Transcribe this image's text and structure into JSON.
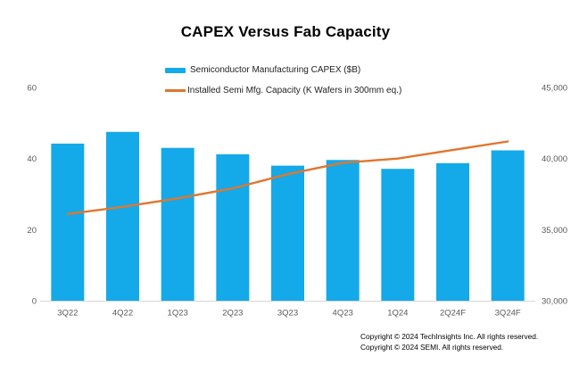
{
  "title": "CAPEX Versus Fab Capacity",
  "legend": {
    "capex": {
      "label": "Semiconductor Manufacturing CAPEX ($B)",
      "color": "#14A9E8"
    },
    "capacity": {
      "label": "Installed Semi Mfg. Capacity (K Wafers in 300mm eq.)",
      "color": "#E0762F"
    }
  },
  "chart_data": {
    "type": "bar",
    "title": "CAPEX Versus Fab Capacity",
    "categories": [
      "3Q22",
      "4Q22",
      "1Q23",
      "2Q23",
      "3Q23",
      "4Q23",
      "1Q24",
      "2Q24F",
      "3Q24F"
    ],
    "series": [
      {
        "name": "Semiconductor Manufacturing CAPEX ($B)",
        "type": "bar",
        "axis": "left",
        "color": "#14A9E8",
        "values": [
          44.2,
          47.5,
          43,
          41.2,
          38,
          39.6,
          37.1,
          38.7,
          42.3
        ]
      },
      {
        "name": "Installed Semi Mfg. Capacity (K Wafers in 300mm eq.)",
        "type": "line",
        "axis": "right",
        "color": "#E0762F",
        "values": [
          36100,
          36600,
          37200,
          37900,
          38900,
          39700,
          40000,
          40600,
          41200
        ]
      }
    ],
    "left_axis": {
      "min": 0,
      "max": 60,
      "ticks": [
        "0",
        "20",
        "40",
        "60"
      ]
    },
    "right_axis": {
      "min": 30000,
      "max": 45000,
      "ticks": [
        "30,000",
        "35,000",
        "40,000",
        "45,000"
      ]
    },
    "grid": "off",
    "legend_position": "top-left-of-plot, stacked"
  },
  "footer": {
    "line1": "Copyright © 2024 TechInsights Inc.  All rights reserved.",
    "line2": "Copyright © 2024 SEMI.  All rights reserved."
  }
}
